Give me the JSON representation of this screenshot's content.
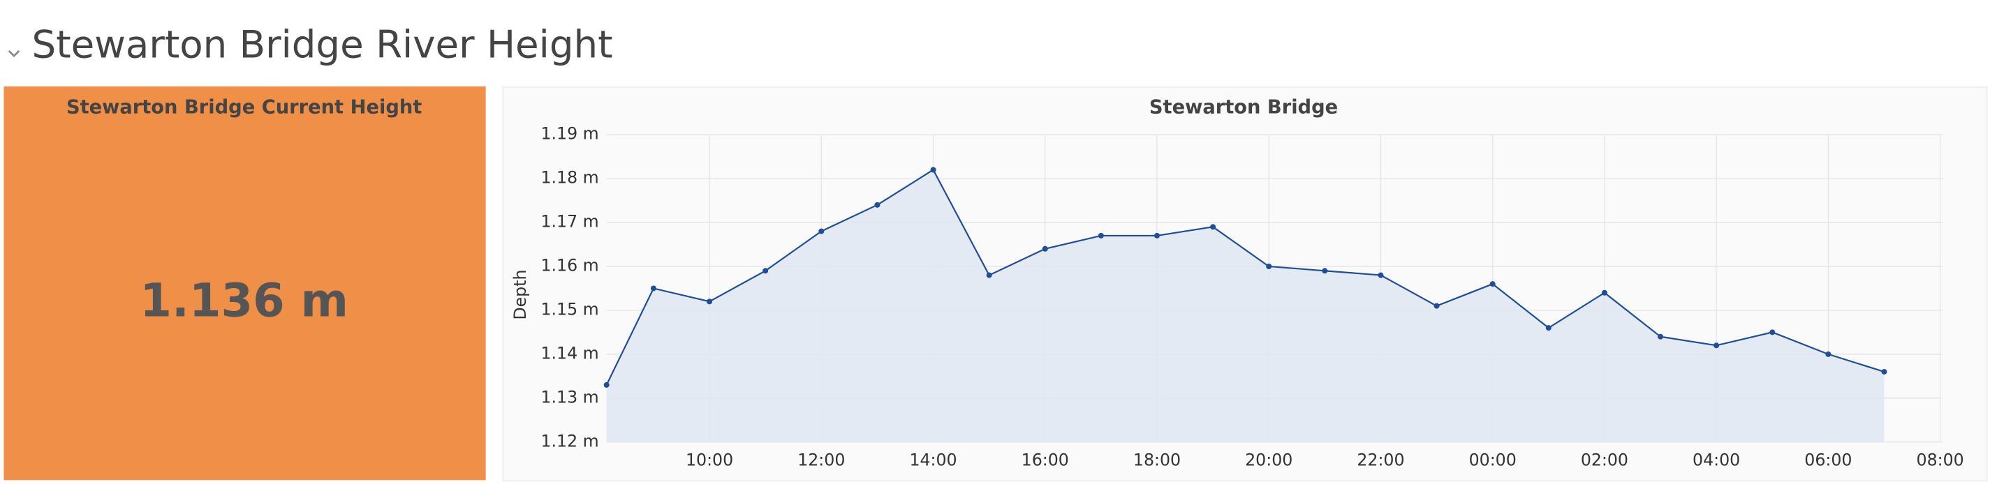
{
  "dashboard": {
    "row_title": "Stewarton Bridge River Height",
    "stat_panel": {
      "title": "Stewarton Bridge Current Height",
      "value": "1.136 m"
    }
  },
  "chart_data": {
    "type": "line",
    "title": "Stewarton Bridge",
    "y_label": "Depth",
    "x": [
      8.16,
      9,
      10,
      11,
      12,
      13,
      14,
      15,
      16,
      17,
      18,
      19,
      20,
      21,
      22,
      23,
      24,
      25,
      26,
      27,
      28,
      29,
      30,
      31
    ],
    "series": [
      {
        "name": "Depth",
        "color": "#1f4e96",
        "values": [
          1.133,
          1.155,
          1.152,
          1.159,
          1.168,
          1.174,
          1.182,
          1.158,
          1.164,
          1.167,
          1.167,
          1.169,
          1.16,
          1.159,
          1.158,
          1.151,
          1.156,
          1.146,
          1.154,
          1.144,
          1.142,
          1.145,
          1.14,
          1.136
        ]
      }
    ],
    "xlim": [
      8.16,
      32.05
    ],
    "xticks": [
      {
        "value": 10,
        "label": "10:00"
      },
      {
        "value": 12,
        "label": "12:00"
      },
      {
        "value": 14,
        "label": "14:00"
      },
      {
        "value": 16,
        "label": "16:00"
      },
      {
        "value": 18,
        "label": "18:00"
      },
      {
        "value": 20,
        "label": "20:00"
      },
      {
        "value": 22,
        "label": "22:00"
      },
      {
        "value": 24,
        "label": "00:00"
      },
      {
        "value": 26,
        "label": "02:00"
      },
      {
        "value": 28,
        "label": "04:00"
      },
      {
        "value": 30,
        "label": "06:00"
      },
      {
        "value": 32,
        "label": "08:00"
      }
    ],
    "ylim": [
      1.12,
      1.19
    ],
    "yticks": [
      {
        "value": 1.12,
        "label": "1.12 m"
      },
      {
        "value": 1.13,
        "label": "1.13 m"
      },
      {
        "value": 1.14,
        "label": "1.14 m"
      },
      {
        "value": 1.15,
        "label": "1.15 m"
      },
      {
        "value": 1.16,
        "label": "1.16 m"
      },
      {
        "value": 1.17,
        "label": "1.17 m"
      },
      {
        "value": 1.18,
        "label": "1.18 m"
      },
      {
        "value": 1.19,
        "label": "1.19 m"
      }
    ],
    "grid": true,
    "fill": "#e1e8f2"
  }
}
